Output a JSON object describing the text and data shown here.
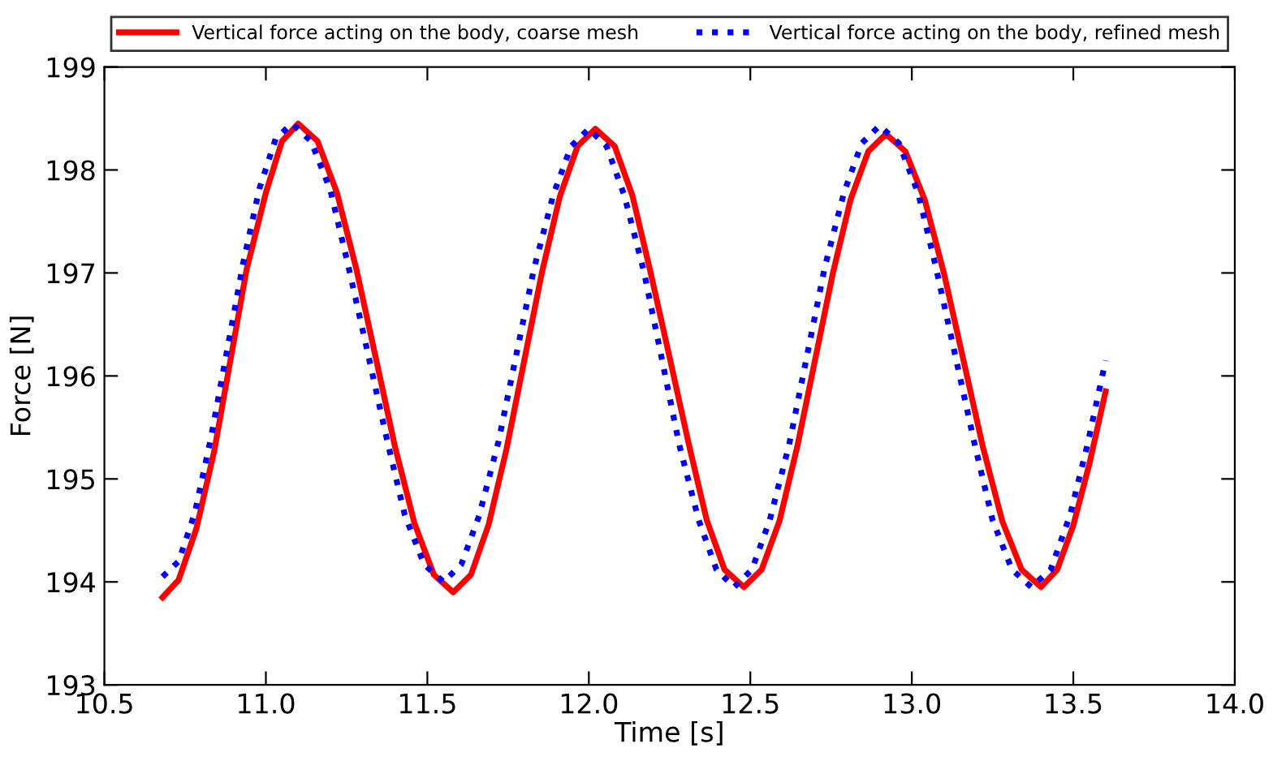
{
  "chart_data": {
    "type": "line",
    "xlabel": "Time [s]",
    "ylabel": "Force [N]",
    "xlim": [
      10.5,
      14.0
    ],
    "xticks": [
      {
        "value": 10.5,
        "label": "10.5"
      },
      {
        "value": 11.0,
        "label": "11.0"
      },
      {
        "value": 11.5,
        "label": "11.5"
      },
      {
        "value": 12.0,
        "label": "12.0"
      },
      {
        "value": 12.5,
        "label": "12.5"
      },
      {
        "value": 13.0,
        "label": "13.0"
      },
      {
        "value": 13.5,
        "label": "13.5"
      },
      {
        "value": 14.0,
        "label": "14.0"
      }
    ],
    "ylim": [
      193,
      199
    ],
    "yticks": [
      193,
      194,
      195,
      196,
      197,
      198,
      199
    ],
    "grid": false,
    "legend": "top",
    "marker": "none",
    "series": [
      {
        "name": "Vertical force acting on the body, coarse mesh",
        "color": "#ff0000",
        "line_style": "solid",
        "x": [
          10.68,
          10.73,
          10.785,
          10.84,
          10.89,
          10.94,
          11.0,
          11.05,
          11.1,
          11.16,
          11.22,
          11.28,
          11.34,
          11.4,
          11.46,
          11.52,
          11.58,
          11.635,
          11.69,
          11.745,
          11.8,
          11.855,
          11.91,
          11.965,
          12.02,
          12.08,
          12.135,
          12.19,
          12.25,
          12.31,
          12.365,
          12.42,
          12.48,
          12.535,
          12.59,
          12.645,
          12.7,
          12.755,
          12.81,
          12.865,
          12.92,
          12.98,
          13.04,
          13.1,
          13.16,
          13.22,
          13.28,
          13.34,
          13.4,
          13.45,
          13.5,
          13.55,
          13.6
        ],
        "values": [
          193.85,
          194.02,
          194.52,
          195.27,
          196.15,
          197.03,
          197.78,
          198.28,
          198.45,
          198.28,
          197.78,
          197.04,
          196.18,
          195.31,
          194.57,
          194.07,
          193.9,
          194.07,
          194.56,
          195.29,
          196.15,
          197.01,
          197.74,
          198.23,
          198.4,
          198.23,
          197.75,
          197.02,
          196.18,
          195.33,
          194.6,
          194.12,
          193.95,
          194.12,
          194.59,
          195.31,
          196.15,
          196.99,
          197.71,
          198.18,
          198.35,
          198.18,
          197.71,
          196.99,
          196.15,
          195.31,
          194.59,
          194.12,
          193.95,
          194.12,
          194.55,
          195.15,
          195.85
        ]
      },
      {
        "name": "Vertical force acting on the body, refined mesh",
        "color": "#0000ff",
        "line_style": "dotted",
        "x": [
          10.68,
          10.73,
          10.78,
          10.83,
          10.88,
          10.93,
          10.98,
          11.03,
          11.08,
          11.14,
          11.2,
          11.255,
          11.315,
          11.375,
          11.43,
          11.49,
          11.55,
          11.605,
          11.66,
          11.72,
          11.775,
          11.83,
          11.89,
          11.945,
          12.0,
          12.055,
          12.11,
          12.17,
          12.225,
          12.28,
          12.34,
          12.395,
          12.45,
          12.505,
          12.56,
          12.62,
          12.675,
          12.73,
          12.79,
          12.845,
          12.9,
          12.96,
          13.02,
          13.075,
          13.135,
          13.195,
          13.25,
          13.31,
          13.37,
          13.43,
          13.49,
          13.545,
          13.6
        ],
        "values": [
          194.05,
          194.2,
          194.67,
          195.4,
          196.25,
          197.1,
          197.82,
          198.3,
          198.45,
          198.28,
          197.8,
          197.07,
          196.23,
          195.38,
          194.65,
          194.17,
          194.0,
          194.17,
          194.64,
          195.36,
          196.2,
          197.04,
          197.76,
          198.23,
          198.4,
          198.23,
          197.75,
          197.02,
          196.18,
          195.33,
          194.6,
          194.12,
          193.95,
          194.12,
          194.6,
          195.33,
          196.19,
          197.05,
          197.78,
          198.26,
          198.43,
          198.26,
          197.77,
          197.05,
          196.19,
          195.33,
          194.6,
          194.12,
          193.95,
          194.12,
          194.65,
          195.35,
          196.15
        ]
      }
    ]
  }
}
